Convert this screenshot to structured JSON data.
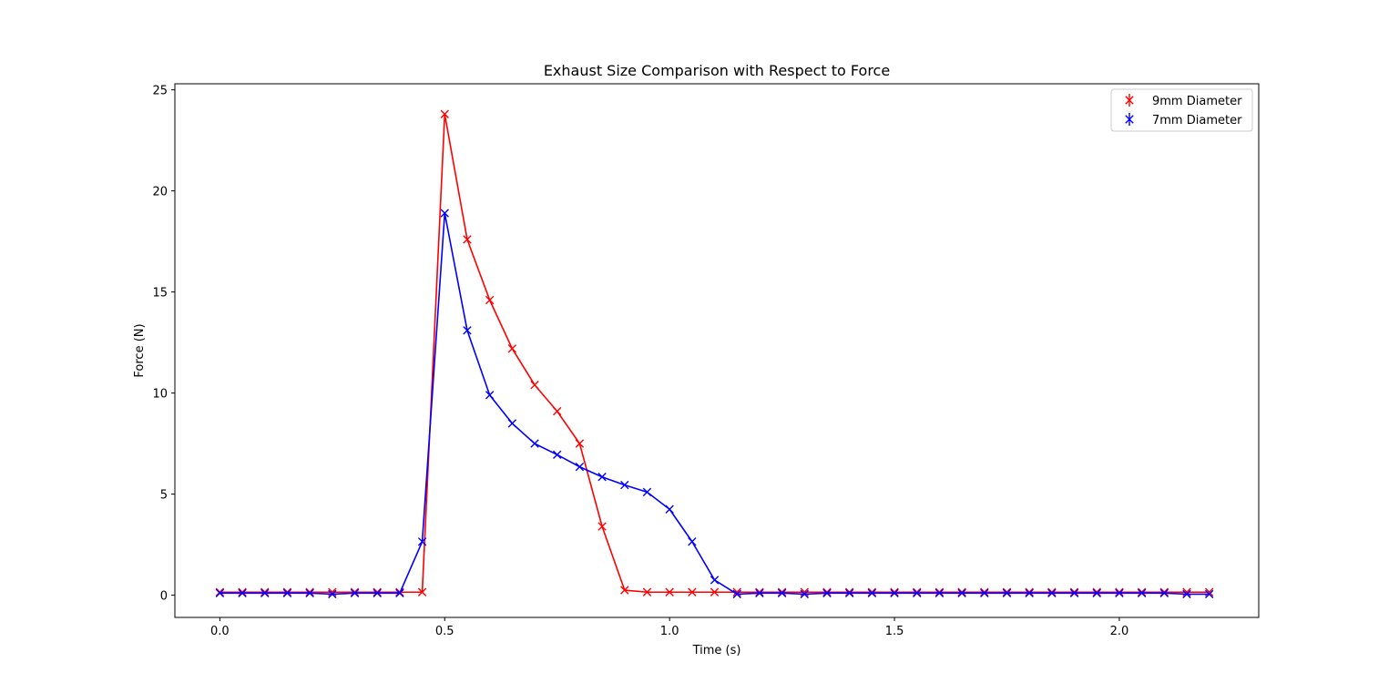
{
  "chart_data": {
    "type": "line",
    "title": "Exhaust Size Comparison with Respect to Force",
    "xlabel": "Time (s)",
    "ylabel": "Force (N)",
    "xlim": [
      -0.1,
      2.31
    ],
    "ylim": [
      -1.1,
      25.3
    ],
    "x_ticks": [
      0.0,
      0.5,
      1.0,
      1.5,
      2.0
    ],
    "x_tick_labels": [
      "0.0",
      "0.5",
      "1.0",
      "1.5",
      "2.0"
    ],
    "y_ticks": [
      0,
      5,
      10,
      15,
      20,
      25
    ],
    "y_tick_labels": [
      "0",
      "5",
      "10",
      "15",
      "20",
      "25"
    ],
    "grid": false,
    "legend_position": "top-right",
    "marker": "x",
    "x": [
      0.0,
      0.05,
      0.1,
      0.15,
      0.2,
      0.25,
      0.3,
      0.35,
      0.4,
      0.45,
      0.5,
      0.55,
      0.6,
      0.65,
      0.7,
      0.75,
      0.8,
      0.85,
      0.9,
      0.95,
      1.0,
      1.05,
      1.1,
      1.15,
      1.2,
      1.25,
      1.3,
      1.35,
      1.4,
      1.45,
      1.5,
      1.55,
      1.6,
      1.65,
      1.7,
      1.75,
      1.8,
      1.85,
      1.9,
      1.95,
      2.0,
      2.05,
      2.1,
      2.15,
      2.2
    ],
    "series": [
      {
        "name": "9mm Diameter",
        "color": "#ff0000",
        "values": [
          0.15,
          0.15,
          0.15,
          0.15,
          0.15,
          0.15,
          0.15,
          0.15,
          0.15,
          0.15,
          23.8,
          17.6,
          14.6,
          12.2,
          10.4,
          9.1,
          7.5,
          3.4,
          0.25,
          0.15,
          0.15,
          0.15,
          0.15,
          0.15,
          0.15,
          0.15,
          0.15,
          0.15,
          0.15,
          0.15,
          0.15,
          0.15,
          0.15,
          0.15,
          0.15,
          0.15,
          0.15,
          0.15,
          0.15,
          0.15,
          0.15,
          0.15,
          0.15,
          0.15,
          0.15
        ]
      },
      {
        "name": "7mm Diameter",
        "color": "#0000ff",
        "values": [
          0.1,
          0.1,
          0.1,
          0.1,
          0.1,
          0.05,
          0.1,
          0.1,
          0.1,
          2.65,
          18.9,
          13.1,
          9.9,
          8.5,
          7.5,
          6.95,
          6.35,
          5.85,
          5.45,
          5.1,
          4.25,
          2.65,
          0.75,
          0.05,
          0.1,
          0.1,
          0.05,
          0.1,
          0.1,
          0.1,
          0.1,
          0.1,
          0.1,
          0.1,
          0.1,
          0.1,
          0.1,
          0.1,
          0.1,
          0.1,
          0.1,
          0.1,
          0.1,
          0.05,
          0.05
        ]
      }
    ]
  }
}
